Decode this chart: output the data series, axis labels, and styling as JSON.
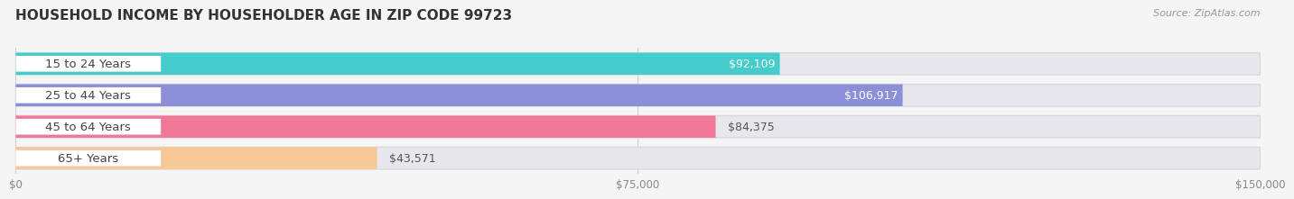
{
  "title": "HOUSEHOLD INCOME BY HOUSEHOLDER AGE IN ZIP CODE 99723",
  "source_text": "Source: ZipAtlas.com",
  "categories": [
    "15 to 24 Years",
    "25 to 44 Years",
    "45 to 64 Years",
    "65+ Years"
  ],
  "values": [
    92109,
    106917,
    84375,
    43571
  ],
  "bar_colors": [
    "#45cccc",
    "#8b8fd8",
    "#f07898",
    "#f5c896"
  ],
  "bar_labels": [
    "$92,109",
    "$106,917",
    "$84,375",
    "$43,571"
  ],
  "value_label_inside": [
    true,
    true,
    false,
    false
  ],
  "xlim": [
    0,
    150000
  ],
  "xticks": [
    0,
    75000,
    150000
  ],
  "xtick_labels": [
    "$0",
    "$75,000",
    "$150,000"
  ],
  "background_color": "#f5f5f5",
  "bar_bg_color": "#e8e8ec",
  "bar_bg_border_color": "#d8d8de",
  "title_fontsize": 11,
  "source_fontsize": 8,
  "cat_label_fontsize": 9.5,
  "val_label_fontsize": 9,
  "bar_height": 0.7,
  "fig_width": 14.06,
  "fig_height": 2.33
}
